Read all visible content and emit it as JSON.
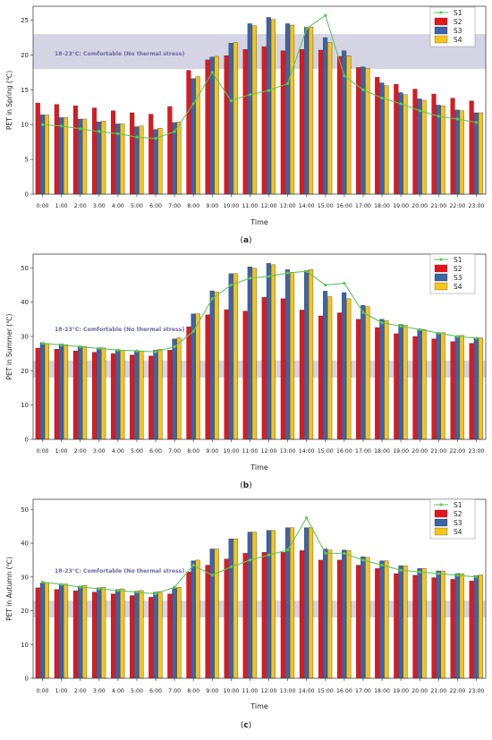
{
  "figure": {
    "colors": {
      "S1": "#5cc85c",
      "S2": "#e8141c",
      "S3": "#3c64a8",
      "S4": "#f5c518",
      "band": "#d4d4e4",
      "band_text": "#6a6aa0"
    }
  },
  "chart_data": [
    {
      "type": "bar",
      "panel_label": "(a)",
      "ylabel": "PET in Spring (℃)",
      "xlabel": "Time",
      "ylim": [
        0,
        27
      ],
      "yticks": [
        0,
        5,
        10,
        15,
        20,
        25
      ],
      "band": [
        18,
        23
      ],
      "band_label": "18-23°C: Comfortable (No thermal stress)",
      "legend": [
        "S1",
        "S2",
        "S3",
        "S4"
      ],
      "legend_position": "top-right",
      "categories": [
        "0:00",
        "1:00",
        "2:00",
        "3:00",
        "4:00",
        "5:00",
        "6:00",
        "7:00",
        "8:00",
        "9:00",
        "10:00",
        "11:00",
        "12:00",
        "13:00",
        "14:00",
        "15:00",
        "16:00",
        "17:00",
        "18:00",
        "19:00",
        "20:00",
        "21:00",
        "22:00",
        "23:00"
      ],
      "series": [
        {
          "name": "S1",
          "kind": "line",
          "values": [
            10.0,
            9.8,
            9.4,
            9.0,
            8.7,
            8.2,
            8.0,
            9.0,
            13.0,
            17.5,
            13.4,
            14.3,
            14.9,
            15.9,
            23.8,
            25.7,
            17.0,
            15.0,
            13.8,
            13.0,
            12.0,
            11.2,
            10.8,
            10.3
          ]
        },
        {
          "name": "S2",
          "kind": "bar",
          "values": [
            13.1,
            12.9,
            12.7,
            12.4,
            12.0,
            11.7,
            11.5,
            12.6,
            17.8,
            19.3,
            19.9,
            20.8,
            21.2,
            20.6,
            20.8,
            20.7,
            19.8,
            18.2,
            16.8,
            15.8,
            15.1,
            14.4,
            13.8,
            13.4
          ]
        },
        {
          "name": "S3",
          "kind": "bar",
          "values": [
            11.4,
            11.0,
            10.8,
            10.4,
            10.1,
            9.7,
            9.3,
            10.3,
            16.6,
            19.7,
            21.7,
            24.5,
            25.4,
            24.5,
            24.0,
            22.5,
            20.6,
            18.3,
            16.0,
            14.6,
            13.7,
            12.8,
            12.1,
            11.7
          ]
        },
        {
          "name": "S4",
          "kind": "bar",
          "values": [
            11.4,
            11.0,
            10.8,
            10.5,
            10.1,
            9.8,
            9.5,
            10.4,
            16.9,
            19.8,
            21.8,
            24.2,
            25.1,
            24.3,
            24.0,
            21.8,
            19.9,
            18.1,
            15.6,
            14.3,
            13.5,
            12.7,
            12.0,
            11.7
          ]
        }
      ]
    },
    {
      "type": "bar",
      "panel_label": "(b)",
      "ylabel": "PET in Summer (℃)",
      "xlabel": "Time",
      "ylim": [
        0,
        54
      ],
      "yticks": [
        0,
        10,
        20,
        30,
        40,
        50
      ],
      "band": [
        18,
        23
      ],
      "band_label": "18-23°C: Comfortable (No thermal stress)",
      "legend": [
        "S1",
        "S2",
        "S3",
        "S4"
      ],
      "legend_position": "top-right",
      "categories": [
        "0:00",
        "1:00",
        "2:00",
        "3:00",
        "4:00",
        "5:00",
        "6:00",
        "7:00",
        "8:00",
        "9:00",
        "10:00",
        "11:00",
        "12:00",
        "13:00",
        "14:00",
        "15:00",
        "16:00",
        "17:00",
        "18:00",
        "19:00",
        "20:00",
        "21:00",
        "22:00",
        "23:00"
      ],
      "series": [
        {
          "name": "S1",
          "kind": "line",
          "values": [
            28.0,
            27.5,
            27.0,
            26.5,
            26.0,
            25.8,
            25.5,
            27.0,
            31.5,
            41.0,
            45.0,
            47.0,
            47.5,
            48.5,
            49.0,
            45.0,
            45.5,
            37.0,
            34.0,
            33.0,
            32.0,
            31.0,
            30.0,
            29.5
          ]
        },
        {
          "name": "S2",
          "kind": "bar",
          "values": [
            26.6,
            26.3,
            25.8,
            25.4,
            25.0,
            24.6,
            24.3,
            26.0,
            32.8,
            36.3,
            37.8,
            37.4,
            41.4,
            41.0,
            37.7,
            36.0,
            36.9,
            35.0,
            32.6,
            30.8,
            30.0,
            29.3,
            28.5,
            28.0
          ]
        },
        {
          "name": "S3",
          "kind": "bar",
          "values": [
            28.2,
            27.8,
            27.2,
            26.7,
            26.2,
            25.7,
            26.0,
            29.3,
            36.6,
            43.3,
            48.3,
            50.3,
            51.3,
            49.5,
            49.2,
            43.2,
            42.8,
            39.1,
            35.0,
            33.5,
            32.2,
            31.0,
            30.2,
            29.6
          ]
        },
        {
          "name": "S4",
          "kind": "bar",
          "values": [
            28.0,
            27.6,
            27.1,
            26.7,
            26.0,
            25.6,
            26.3,
            29.6,
            36.6,
            43.0,
            48.3,
            49.9,
            50.9,
            48.7,
            49.5,
            41.6,
            41.0,
            38.7,
            34.6,
            33.3,
            32.0,
            31.1,
            30.3,
            29.6
          ]
        }
      ]
    },
    {
      "type": "bar",
      "panel_label": "(c)",
      "ylabel": "PET in Autumn (℃)",
      "xlabel": "Time",
      "ylim": [
        0,
        53
      ],
      "yticks": [
        0,
        10,
        20,
        30,
        40,
        50
      ],
      "band": [
        18,
        23
      ],
      "band_label": "18-23°C: Comfortable (No thermal stress)",
      "legend": [
        "S1",
        "S2",
        "S3",
        "S4"
      ],
      "legend_position": "top-right",
      "categories": [
        "0:00",
        "1:00",
        "2:00",
        "3:00",
        "4:00",
        "5:00",
        "6:00",
        "7:00",
        "8:00",
        "9:00",
        "10:00",
        "11:00",
        "12:00",
        "13:00",
        "14:00",
        "15:00",
        "16:00",
        "17:00",
        "18:00",
        "19:00",
        "20:00",
        "21:00",
        "22:00",
        "23:00"
      ],
      "series": [
        {
          "name": "S1",
          "kind": "line",
          "values": [
            28.5,
            27.8,
            27.0,
            26.5,
            26.0,
            25.5,
            25.0,
            27.0,
            33.5,
            30.5,
            33.0,
            35.0,
            36.5,
            38.0,
            47.5,
            37.0,
            37.0,
            35.0,
            33.5,
            32.0,
            31.5,
            31.0,
            30.5,
            30.0
          ]
        },
        {
          "name": "S2",
          "kind": "bar",
          "values": [
            26.8,
            26.3,
            25.9,
            25.5,
            25.0,
            24.5,
            24.0,
            25.0,
            31.5,
            33.5,
            35.3,
            37.0,
            37.3,
            37.3,
            37.8,
            35.0,
            35.0,
            33.5,
            32.5,
            31.0,
            30.5,
            29.8,
            29.3,
            28.8
          ]
        },
        {
          "name": "S3",
          "kind": "bar",
          "values": [
            28.2,
            27.8,
            27.3,
            26.8,
            26.3,
            25.8,
            25.5,
            26.7,
            34.8,
            38.3,
            41.3,
            43.3,
            43.8,
            44.6,
            44.6,
            38.3,
            38.0,
            36.0,
            34.8,
            33.3,
            32.5,
            31.8,
            31.0,
            30.4
          ]
        },
        {
          "name": "S4",
          "kind": "bar",
          "values": [
            28.3,
            27.9,
            27.5,
            27.0,
            26.5,
            26.0,
            25.7,
            27.0,
            35.0,
            38.3,
            41.3,
            43.3,
            43.8,
            44.6,
            44.6,
            38.0,
            37.8,
            35.8,
            34.8,
            33.3,
            32.5,
            31.8,
            31.0,
            30.6
          ]
        }
      ]
    }
  ]
}
